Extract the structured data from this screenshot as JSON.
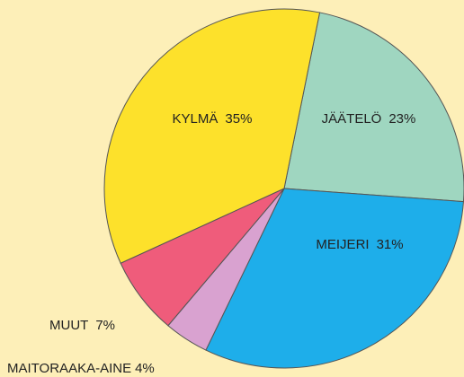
{
  "chart_data": {
    "type": "pie",
    "categories": [
      "JÄÄTELÖ",
      "MEIJERI",
      "MAITORAAKA-AINE",
      "MUUT",
      "KYLMÄ"
    ],
    "values": [
      23,
      31,
      4,
      7,
      35
    ],
    "value_labels": [
      "23%",
      "31%",
      "4%",
      "7%",
      "35%"
    ],
    "colors": [
      "#9fd6c0",
      "#1eaeea",
      "#d9a2d0",
      "#ef5c7b",
      "#fde12b"
    ]
  }
}
